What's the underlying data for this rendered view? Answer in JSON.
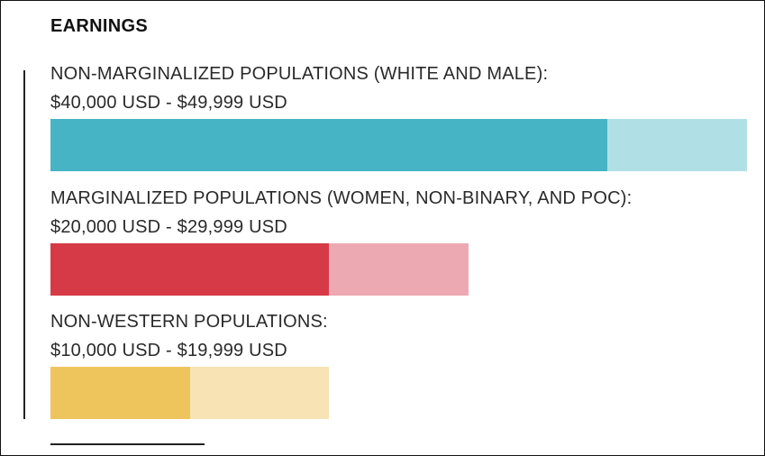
{
  "chart_data": {
    "type": "bar",
    "title": "EARNINGS",
    "xlim": [
      0,
      50000
    ],
    "categories": [
      "NON-MARGINALIZED POPULATIONS (WHITE AND MALE):",
      "MARGINALIZED POPULATIONS (WOMEN, NON-BINARY, AND POC):",
      "NON-WESTERN POPULATIONS:"
    ],
    "ranges": [
      "$40,000 USD - $49,999 USD",
      "$20,000 USD - $29,999 USD",
      "$10,000 USD - $19,999 USD"
    ],
    "series": [
      {
        "values": [
          40000,
          20000,
          10000
        ],
        "colors": [
          "#46b4c4",
          "#d63a47",
          "#edc55c"
        ]
      },
      {
        "values": [
          49999,
          29999,
          19999
        ],
        "colors": [
          "#b0e0e6",
          "#eda9b1",
          "#f7e3b3"
        ]
      }
    ]
  }
}
